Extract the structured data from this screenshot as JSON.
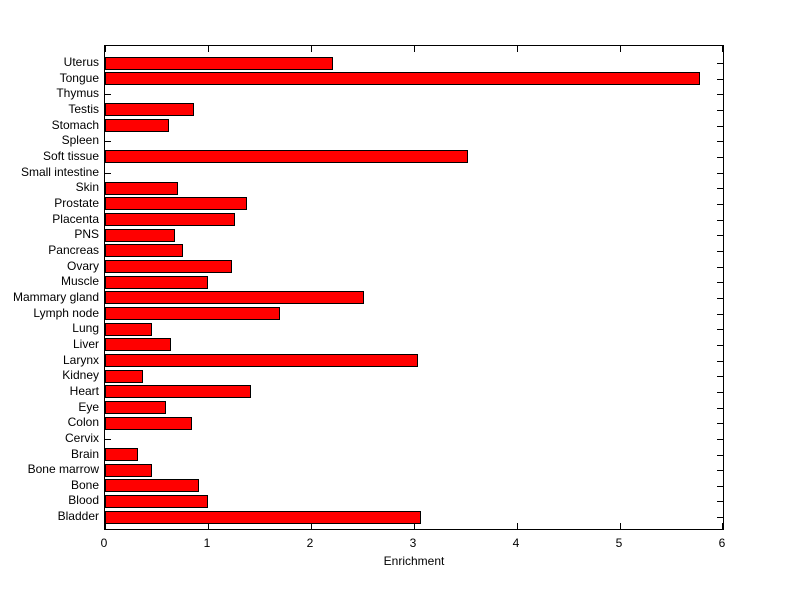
{
  "chart_data": {
    "type": "bar",
    "orientation": "horizontal",
    "title": "",
    "xlabel": "Enrichment",
    "ylabel": "",
    "categories": [
      "Uterus",
      "Tongue",
      "Thymus",
      "Testis",
      "Stomach",
      "Spleen",
      "Soft tissue",
      "Small intestine",
      "Skin",
      "Prostate",
      "Placenta",
      "PNS",
      "Pancreas",
      "Ovary",
      "Muscle",
      "Mammary gland",
      "Lymph node",
      "Lung",
      "Liver",
      "Larynx",
      "Kidney",
      "Heart",
      "Eye",
      "Colon",
      "Cervix",
      "Brain",
      "Bone marrow",
      "Bone",
      "Blood",
      "Bladder"
    ],
    "values": [
      2.21,
      5.78,
      0,
      0.86,
      0.62,
      0,
      3.52,
      0,
      0.71,
      1.38,
      1.26,
      0.68,
      0.76,
      1.23,
      1.0,
      2.51,
      1.7,
      0.46,
      0.64,
      3.04,
      0.37,
      1.42,
      0.59,
      0.84,
      0,
      0.32,
      0.46,
      0.91,
      1.0,
      3.07
    ],
    "xlim": [
      0,
      6
    ],
    "xticks": [
      0,
      1,
      2,
      3,
      4,
      5,
      6
    ],
    "grid": false,
    "legend": null,
    "bar_color": "#ff0000",
    "bar_edge_color": "#000000",
    "axis_color": "#000000",
    "background_color": "#ffffff"
  }
}
